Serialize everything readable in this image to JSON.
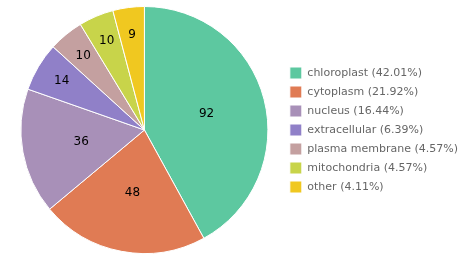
{
  "chart_data": {
    "type": "pie",
    "categories": [
      "chloroplast (42.01%)",
      "cytoplasm (21.92%)",
      "nucleus (16.44%)",
      "extracellular (6.39%)",
      "plasma membrane (4.57%)",
      "mitochondria (4.57%)",
      "other (4.11%)"
    ],
    "values": [
      92,
      48,
      36,
      14,
      10,
      10,
      9
    ],
    "colors": [
      "#5DC8A0",
      "#E07B54",
      "#A890B8",
      "#9080C8",
      "#C4A0A0",
      "#C8D44A",
      "#F0C820"
    ],
    "legend": "right",
    "data_labels": true
  }
}
